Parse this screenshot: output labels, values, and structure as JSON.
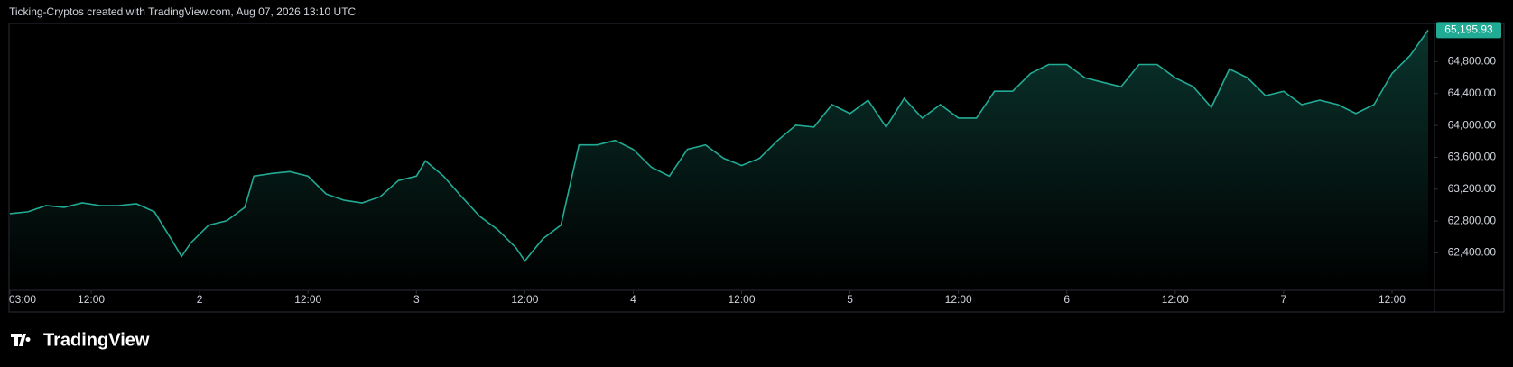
{
  "header": {
    "title": "Ticking-Cryptos created with TradingView.com, Aug 07, 2026 13:10 UTC"
  },
  "footer": {
    "logo": "TradingView"
  },
  "chart_data": {
    "type": "area",
    "color": "#22ab94",
    "grid": false,
    "x": [
      3,
      5,
      7,
      9,
      11,
      13,
      15,
      17,
      19,
      21,
      22,
      23,
      25,
      27,
      29,
      30,
      32,
      34,
      36,
      38,
      40,
      42,
      44,
      46,
      48,
      49,
      51,
      53,
      55,
      57,
      59,
      60,
      62,
      64,
      65,
      66,
      68,
      70,
      72,
      74,
      76,
      78,
      80,
      82,
      84,
      86,
      88,
      90,
      92,
      94,
      96,
      98,
      100,
      102,
      104,
      106,
      108,
      110,
      112,
      114,
      116,
      118,
      120,
      122,
      124,
      126,
      128,
      130,
      132,
      134,
      136,
      138,
      140,
      142,
      144,
      146,
      148,
      150,
      152,
      154,
      156,
      158,
      160
    ],
    "values": [
      62893,
      62916,
      62994,
      62972,
      63028,
      62994,
      62994,
      63017,
      62916,
      62546,
      62355,
      62523,
      62748,
      62804,
      62972,
      63364,
      63398,
      63420,
      63364,
      63140,
      63061,
      63028,
      63106,
      63308,
      63364,
      63555,
      63364,
      63106,
      62860,
      62692,
      62467,
      62299,
      62579,
      62748,
      63252,
      63756,
      63756,
      63812,
      63700,
      63476,
      63364,
      63700,
      63756,
      63588,
      63498,
      63588,
      63812,
      64003,
      63980,
      64261,
      64149,
      64317,
      63980,
      64339,
      64093,
      64261,
      64093,
      64093,
      64429,
      64429,
      64653,
      64765,
      64765,
      64597,
      64541,
      64485,
      64765,
      64765,
      64597,
      64485,
      64227,
      64709,
      64597,
      64373,
      64429,
      64261,
      64317,
      64261,
      64149,
      64261,
      64653,
      64877,
      65195.93
    ],
    "value_labels": [
      null,
      null,
      null,
      null,
      null,
      null,
      null,
      null,
      null,
      null,
      null,
      null,
      null,
      null,
      null,
      null,
      null,
      null,
      null,
      null,
      null,
      null,
      null,
      null,
      null,
      null,
      null,
      null,
      null,
      null,
      null,
      null,
      null,
      null,
      null,
      null,
      null,
      null,
      null,
      null,
      null,
      null,
      null,
      null,
      null,
      null,
      null,
      null,
      null,
      null,
      null,
      null,
      null,
      null,
      null,
      null,
      null,
      null,
      null,
      null,
      null,
      null,
      null,
      null,
      null,
      null,
      null,
      null,
      null,
      null,
      null,
      null,
      null,
      null,
      null,
      null,
      null,
      null,
      null,
      null,
      null,
      null,
      "65,195.93"
    ],
    "xlim": [
      2.9,
      160.7
    ],
    "xticks": [
      {
        "value": 3,
        "label": "03:00"
      },
      {
        "value": 12,
        "label": "12:00"
      },
      {
        "value": 24,
        "label": "2"
      },
      {
        "value": 36,
        "label": "12:00"
      },
      {
        "value": 48,
        "label": "3"
      },
      {
        "value": 60,
        "label": "12:00"
      },
      {
        "value": 72,
        "label": "4"
      },
      {
        "value": 84,
        "label": "12:00"
      },
      {
        "value": 96,
        "label": "5"
      },
      {
        "value": 108,
        "label": "12:00"
      },
      {
        "value": 120,
        "label": "6"
      },
      {
        "value": 132,
        "label": "12:00"
      },
      {
        "value": 144,
        "label": "7"
      },
      {
        "value": 156,
        "label": "12:00"
      }
    ],
    "ylim": [
      61930,
      65280
    ],
    "yticks": [
      {
        "value": 62400,
        "label": "62,400.00"
      },
      {
        "value": 62800,
        "label": "62,800.00"
      },
      {
        "value": 63200,
        "label": "63,200.00"
      },
      {
        "value": 63600,
        "label": "63,600.00"
      },
      {
        "value": 64000,
        "label": "64,000.00"
      },
      {
        "value": 64400,
        "label": "64,400.00"
      },
      {
        "value": 64800,
        "label": "64,800.00"
      }
    ]
  }
}
